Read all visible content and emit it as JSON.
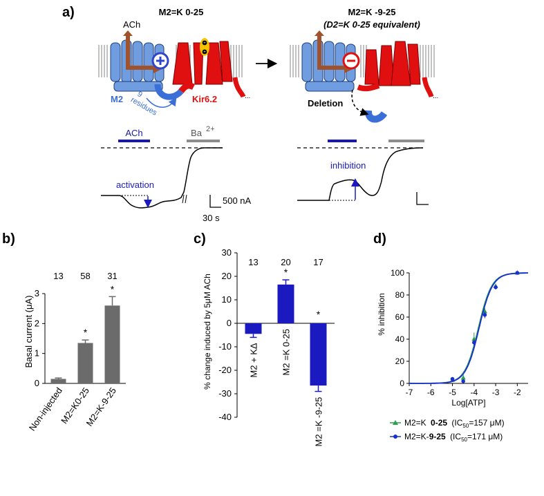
{
  "panel_a": {
    "letter": "a)",
    "left": {
      "title": "M2=K 0-25",
      "ach_label": "ACh",
      "m2_label": "M2",
      "kir_label": "Kir6.2",
      "residues_label_1": "9",
      "residues_label_2": "residues",
      "trace_ach": "ACh",
      "trace_ba": "Ba",
      "trace_ba_sup": "2+",
      "annotation": "activation",
      "scale_y": "500 nA",
      "scale_x": "30 s"
    },
    "right": {
      "title": "M2=K -9-25",
      "subtitle": "(D2=K 0-25 equivalent)",
      "deletion_label": "Deletion",
      "annotation": "inhibition"
    },
    "colors": {
      "receptor": "#6f9de0",
      "channel": "#e01010",
      "arrow": "#a0522d",
      "plus": "#3344cc",
      "minus": "#e01010",
      "ach_bar": "#1a1aa0",
      "ba_bar": "#8c8c8c"
    }
  },
  "chart_data": [
    {
      "panel": "b)",
      "type": "bar",
      "categories": [
        "Non-injected",
        "M2=K0-25",
        "M2=K-9-25"
      ],
      "values": [
        0.15,
        1.35,
        2.6
      ],
      "errors": [
        0.03,
        0.1,
        0.3
      ],
      "n_labels": [
        "13",
        "58",
        "31"
      ],
      "significance": [
        "",
        "*",
        "*"
      ],
      "ylabel": "Basal current (μA)",
      "ylim": [
        0,
        3
      ],
      "yticks": [
        "0",
        "1",
        "2",
        "3"
      ],
      "bar_color": "#6b6b6b"
    },
    {
      "panel": "c)",
      "type": "bar",
      "categories": [
        "M2 + KΔ",
        "M2 =K 0-25",
        "M2 =K -9-25"
      ],
      "values": [
        -4.5,
        16.5,
        -26.5
      ],
      "errors": [
        1.5,
        2.0,
        2.5
      ],
      "n_labels": [
        "13",
        "20",
        "17"
      ],
      "significance": [
        "",
        "*",
        "*"
      ],
      "ylabel": "% change induced by 5μM ACh",
      "ylim": [
        -40,
        30
      ],
      "yticks": [
        "30",
        "20",
        "10",
        "0",
        "-10",
        "-20",
        "-30",
        "-40"
      ],
      "bar_color": "#1a1ac0"
    },
    {
      "panel": "d)",
      "type": "line",
      "xlabel": "Log[ATP]",
      "ylabel": "% inhibition",
      "xlim": [
        -7,
        -1.5
      ],
      "ylim": [
        0,
        100
      ],
      "xticks": [
        "-7",
        "-6",
        "-5",
        "-4",
        "-3",
        "-2"
      ],
      "yticks": [
        "0",
        "20",
        "40",
        "60",
        "80",
        "100"
      ],
      "series": [
        {
          "name": "M2=K 0-25 (IC50=157 μM)",
          "legend_main": "M2=K",
          "legend_bold": "0-25",
          "legend_tail": "(IC",
          "legend_sub": "50",
          "legend_end": "=157 μM)",
          "color": "#2aa14a",
          "marker": "triangle",
          "logIC50": -3.8,
          "x": [
            -5,
            -4.5,
            -4,
            -3.5,
            -3,
            -2
          ],
          "y": [
            3,
            5,
            40,
            65,
            88,
            100
          ],
          "err": [
            1,
            3,
            6,
            3,
            2,
            0
          ]
        },
        {
          "name": "M2=K-9-25 (IC50=171 μM)",
          "legend_main": "M2=K-",
          "legend_bold": "9-25",
          "legend_tail": "(IC",
          "legend_sub": "50",
          "legend_end": "=171 μM)",
          "color": "#1a2fd0",
          "marker": "circle",
          "logIC50": -3.77,
          "x": [
            -5,
            -4.5,
            -4,
            -3.5,
            -3,
            -2
          ],
          "y": [
            4,
            2,
            37,
            62,
            87,
            100
          ],
          "err": [
            1,
            1,
            3,
            3,
            2,
            0
          ]
        }
      ]
    }
  ]
}
